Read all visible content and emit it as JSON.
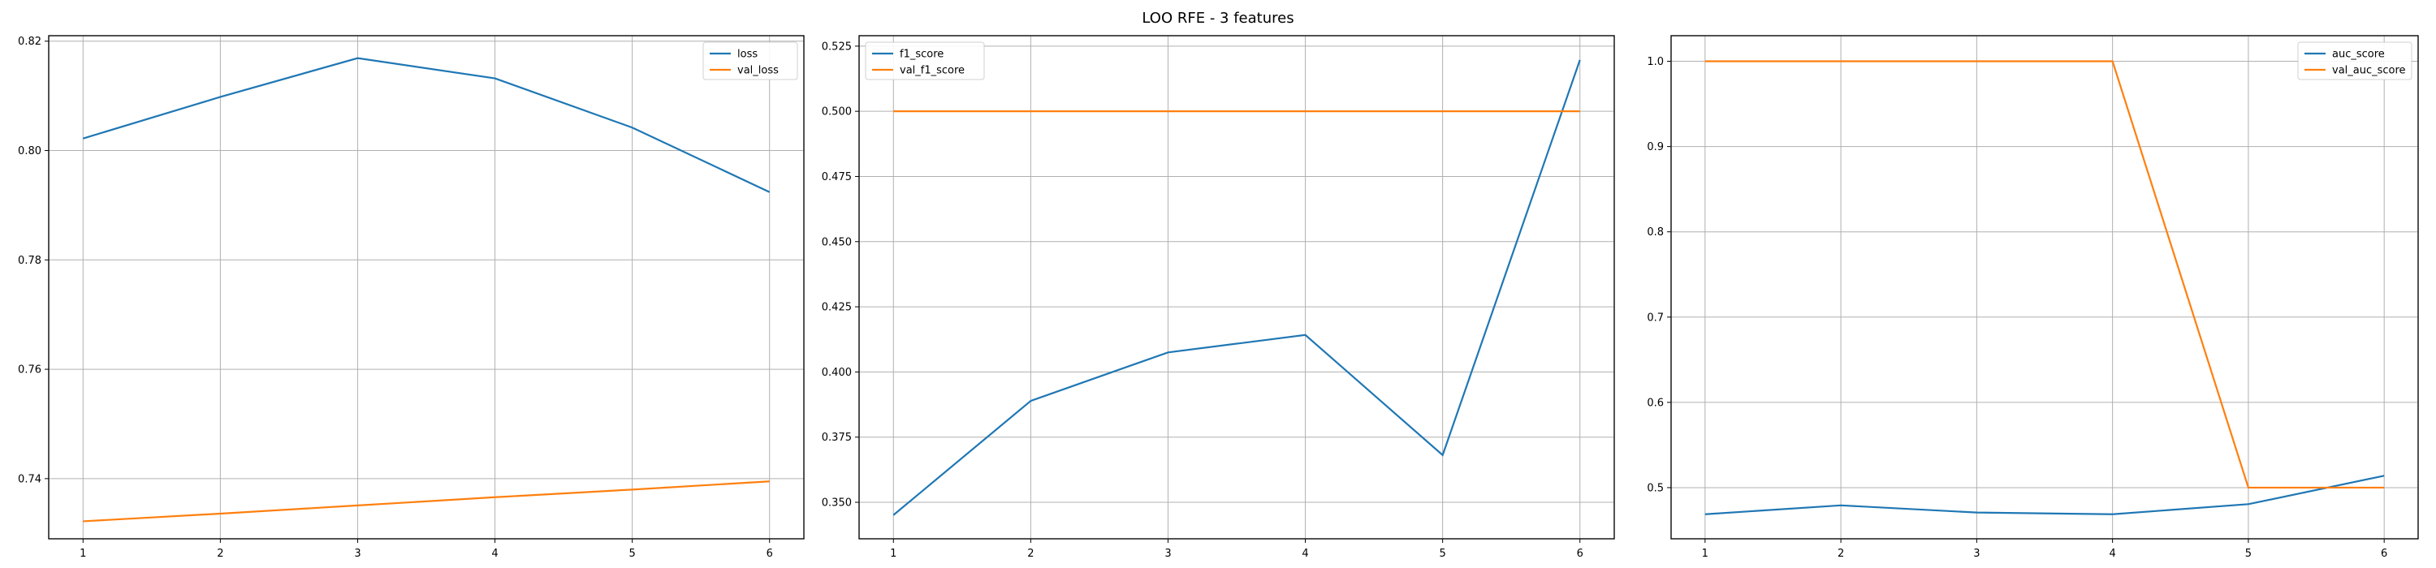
{
  "figure": {
    "suptitle": "LOO RFE - 3 features",
    "colors": {
      "series1": "#1f77b4",
      "series2": "#ff7f0e"
    }
  },
  "chart_data": [
    {
      "type": "line",
      "x": [
        1,
        2,
        3,
        4,
        5,
        6
      ],
      "xticks": [
        1,
        2,
        3,
        4,
        5,
        6
      ],
      "xlim": [
        0.75,
        6.25
      ],
      "ylim": [
        0.729,
        0.821
      ],
      "yticks": [
        0.74,
        0.76,
        0.78,
        0.8,
        0.82
      ],
      "ytick_labels": [
        "0.74",
        "0.76",
        "0.78",
        "0.80",
        "0.82"
      ],
      "grid": true,
      "legend": "top-right",
      "series": [
        {
          "name": "loss",
          "values": [
            0.8022,
            0.8098,
            0.8169,
            0.8132,
            0.8042,
            0.7924
          ]
        },
        {
          "name": "val_loss",
          "values": [
            0.7322,
            0.7336,
            0.7351,
            0.7366,
            0.738,
            0.7395
          ]
        }
      ]
    },
    {
      "type": "line",
      "x": [
        1,
        2,
        3,
        4,
        5,
        6
      ],
      "xticks": [
        1,
        2,
        3,
        4,
        5,
        6
      ],
      "xlim": [
        0.75,
        6.25
      ],
      "ylim": [
        0.336,
        0.529
      ],
      "yticks": [
        0.35,
        0.375,
        0.4,
        0.425,
        0.45,
        0.475,
        0.5,
        0.525
      ],
      "ytick_labels": [
        "0.350",
        "0.375",
        "0.400",
        "0.425",
        "0.450",
        "0.475",
        "0.500",
        "0.525"
      ],
      "grid": true,
      "legend": "top-left",
      "series": [
        {
          "name": "f1_score",
          "values": [
            0.3451,
            0.3889,
            0.4075,
            0.4142,
            0.3681,
            0.5197
          ]
        },
        {
          "name": "val_f1_score",
          "values": [
            0.5,
            0.5,
            0.5,
            0.5,
            0.5,
            0.5
          ]
        }
      ]
    },
    {
      "type": "line",
      "x": [
        1,
        2,
        3,
        4,
        5,
        6
      ],
      "xticks": [
        1,
        2,
        3,
        4,
        5,
        6
      ],
      "xlim": [
        0.75,
        6.25
      ],
      "ylim": [
        0.44,
        1.03
      ],
      "yticks": [
        0.5,
        0.6,
        0.7,
        0.8,
        0.9,
        1.0
      ],
      "ytick_labels": [
        "0.5",
        "0.6",
        "0.7",
        "0.8",
        "0.9",
        "1.0"
      ],
      "grid": true,
      "legend": "top-right",
      "series": [
        {
          "name": "auc_score",
          "values": [
            0.4688,
            0.4792,
            0.4708,
            0.4688,
            0.4806,
            0.5139
          ]
        },
        {
          "name": "val_auc_score",
          "values": [
            1.0,
            1.0,
            1.0,
            1.0,
            0.5,
            0.5
          ]
        }
      ]
    }
  ]
}
